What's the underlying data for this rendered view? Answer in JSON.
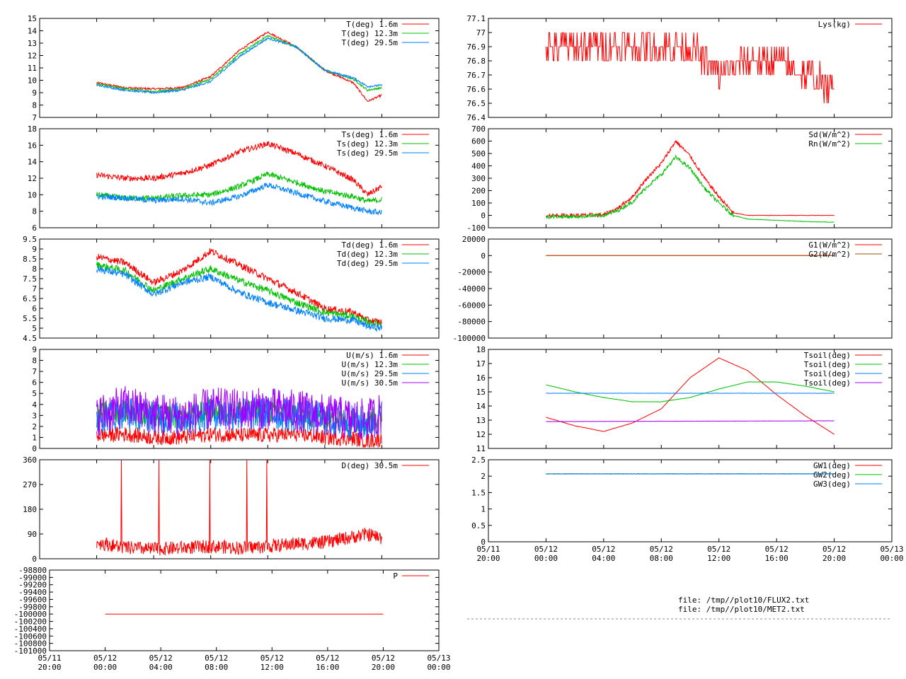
{
  "page": {
    "file_notes": [
      "file: /tmp//plot10/FLUX2.txt",
      "file: /tmp//plot10/MET2.txt"
    ]
  },
  "time_axis": {
    "start": "05/11 20:00",
    "end": "05/13 00:00",
    "tick_labels": [
      [
        "05/11",
        "20:00"
      ],
      [
        "05/12",
        "00:00"
      ],
      [
        "05/12",
        "04:00"
      ],
      [
        "05/12",
        "08:00"
      ],
      [
        "05/12",
        "12:00"
      ],
      [
        "05/12",
        "16:00"
      ],
      [
        "05/12",
        "20:00"
      ],
      [
        "05/13",
        "00:00"
      ]
    ]
  },
  "chart_data": [
    {
      "id": "T",
      "type": "line",
      "ylim": [
        7,
        15
      ],
      "yticks": [
        "7",
        "8",
        "9",
        "10",
        "11",
        "12",
        "13",
        "14",
        "15"
      ],
      "series": [
        {
          "name": "T(deg)  1.6m",
          "color": "#ff0000",
          "x": [
            4,
            6,
            8,
            10,
            12,
            14,
            16,
            18,
            20,
            22,
            23,
            24
          ],
          "y": [
            9.8,
            9.4,
            9.3,
            9.4,
            10.3,
            12.4,
            13.9,
            12.7,
            10.8,
            9.8,
            8.3,
            8.8
          ]
        },
        {
          "name": "T(deg) 12.3m",
          "color": "#00c000",
          "x": [
            4,
            6,
            8,
            10,
            12,
            14,
            16,
            18,
            20,
            22,
            23,
            24
          ],
          "y": [
            9.7,
            9.3,
            9.1,
            9.3,
            10.1,
            12.1,
            13.6,
            12.7,
            10.8,
            10.1,
            9.2,
            9.4
          ]
        },
        {
          "name": "T(deg) 29.5m",
          "color": "#0080ff",
          "x": [
            4,
            6,
            8,
            10,
            12,
            14,
            16,
            18,
            20,
            22,
            23,
            24
          ],
          "y": [
            9.6,
            9.2,
            9.0,
            9.2,
            9.9,
            11.9,
            13.4,
            12.7,
            10.8,
            10.2,
            9.5,
            9.6
          ]
        }
      ]
    },
    {
      "id": "Ts",
      "type": "line",
      "ylim": [
        6,
        18
      ],
      "yticks": [
        "6",
        "8",
        "10",
        "12",
        "14",
        "16",
        "18"
      ],
      "series": [
        {
          "name": "Ts(deg)  1.6m",
          "color": "#ff0000",
          "x": [
            4,
            6,
            8,
            10,
            12,
            14,
            16,
            18,
            20,
            22,
            23,
            24
          ],
          "y": [
            12.4,
            12.0,
            12.0,
            12.6,
            13.6,
            15.2,
            16.2,
            15.0,
            13.5,
            11.8,
            10.0,
            11.0
          ]
        },
        {
          "name": "Ts(deg) 12.3m",
          "color": "#00c000",
          "x": [
            4,
            6,
            8,
            10,
            12,
            14,
            16,
            18,
            20,
            22,
            23,
            24
          ],
          "y": [
            10.0,
            9.6,
            9.6,
            9.9,
            10.0,
            11.0,
            12.5,
            11.5,
            10.4,
            9.8,
            9.2,
            9.4
          ]
        },
        {
          "name": "Ts(deg) 29.5m",
          "color": "#0080ff",
          "x": [
            4,
            6,
            8,
            10,
            12,
            14,
            16,
            18,
            20,
            22,
            23,
            24
          ],
          "y": [
            9.8,
            9.6,
            9.3,
            9.5,
            9.0,
            9.8,
            11.2,
            10.2,
            9.2,
            8.4,
            8.0,
            7.8
          ]
        }
      ]
    },
    {
      "id": "Td",
      "type": "line",
      "ylim": [
        4.5,
        9.5
      ],
      "yticks": [
        "4.5",
        "5",
        "5.5",
        "6",
        "6.5",
        "7",
        "7.5",
        "8",
        "8.5",
        "9",
        "9.5"
      ],
      "series": [
        {
          "name": "Td(deg)  1.6m",
          "color": "#ff0000",
          "x": [
            4,
            6,
            8,
            10,
            12,
            14,
            16,
            18,
            20,
            22,
            23,
            24
          ],
          "y": [
            8.6,
            8.3,
            7.3,
            7.9,
            8.9,
            8.2,
            7.5,
            6.8,
            6.0,
            5.8,
            5.4,
            5.3
          ]
        },
        {
          "name": "Td(deg) 12.3m",
          "color": "#00c000",
          "x": [
            4,
            6,
            8,
            10,
            12,
            14,
            16,
            18,
            20,
            22,
            23,
            24
          ],
          "y": [
            8.2,
            7.9,
            6.9,
            7.5,
            8.0,
            7.4,
            6.9,
            6.3,
            5.8,
            5.6,
            5.3,
            5.2
          ]
        },
        {
          "name": "Td(deg) 29.5m",
          "color": "#0080ff",
          "x": [
            4,
            6,
            8,
            10,
            12,
            14,
            16,
            18,
            20,
            22,
            23,
            24
          ],
          "y": [
            8.0,
            7.7,
            6.7,
            7.3,
            7.6,
            6.8,
            6.3,
            5.9,
            5.5,
            5.4,
            5.1,
            5.0
          ]
        }
      ]
    },
    {
      "id": "U",
      "type": "line",
      "ylim": [
        0,
        9
      ],
      "yticks": [
        "0",
        "1",
        "2",
        "3",
        "4",
        "5",
        "6",
        "7",
        "8",
        "9"
      ],
      "series": [
        {
          "name": "U(m/s)  1.6m",
          "color": "#ff0000",
          "x": [
            4,
            6,
            8,
            10,
            12,
            14,
            16,
            18,
            20,
            22,
            23,
            24
          ],
          "y": [
            1.2,
            1.3,
            1.0,
            1.0,
            1.3,
            1.2,
            1.2,
            1.3,
            1.0,
            0.9,
            0.7,
            0.8
          ]
        },
        {
          "name": "U(m/s) 12.3m",
          "color": "#00c000",
          "x": [
            4,
            6,
            8,
            10,
            12,
            14,
            16,
            18,
            20,
            22,
            23,
            24
          ],
          "y": [
            3.0,
            3.5,
            3.0,
            2.8,
            3.4,
            3.3,
            3.4,
            3.2,
            2.8,
            2.5,
            2.4,
            3.0
          ]
        },
        {
          "name": "U(m/s) 29.5m",
          "color": "#0080ff",
          "x": [
            4,
            6,
            8,
            10,
            12,
            14,
            16,
            18,
            20,
            22,
            23,
            24
          ],
          "y": [
            2.8,
            3.3,
            2.9,
            2.7,
            3.2,
            3.1,
            3.2,
            3.0,
            2.7,
            2.4,
            2.3,
            2.9
          ]
        },
        {
          "name": "U(m/s) 30.5m",
          "color": "#a000ff",
          "x": [
            4,
            6,
            8,
            10,
            12,
            14,
            16,
            18,
            20,
            22,
            23,
            24
          ],
          "y": [
            3.0,
            3.8,
            3.2,
            2.9,
            3.6,
            3.5,
            3.6,
            3.4,
            3.0,
            2.6,
            2.6,
            3.2
          ]
        }
      ]
    },
    {
      "id": "D",
      "type": "line",
      "ylim": [
        0,
        360
      ],
      "yticks": [
        "0",
        "90",
        "180",
        "270",
        "360"
      ],
      "series": [
        {
          "name": "D(deg)  30.5m",
          "color": "#ff0000",
          "x": [
            4,
            6,
            8,
            10,
            12,
            14,
            16,
            18,
            20,
            22,
            23,
            24
          ],
          "y": [
            60,
            40,
            35,
            40,
            45,
            40,
            45,
            55,
            60,
            80,
            90,
            75
          ]
        }
      ]
    },
    {
      "id": "P",
      "type": "line",
      "ylim": [
        -101000,
        -98800
      ],
      "yticks": [
        "-98800",
        "-99000",
        "-99200",
        "-99400",
        "-99600",
        "-99800",
        "-100000",
        "-100200",
        "-100400",
        "-100600",
        "-100800",
        "-101000"
      ],
      "series": [
        {
          "name": "P",
          "color": "#ff0000",
          "x": [
            4,
            24
          ],
          "y": [
            -100000,
            -100000
          ]
        }
      ]
    },
    {
      "id": "Lys",
      "type": "line",
      "ylim": [
        76.4,
        77.1
      ],
      "yticks": [
        "76.4",
        "76.5",
        "76.6",
        "76.7",
        "76.8",
        "76.9",
        "77",
        "77.1"
      ],
      "series": [
        {
          "name": "Lys(kg)",
          "color": "#ff0000",
          "x": [
            4,
            6,
            8,
            10,
            12,
            14,
            16,
            18,
            20,
            22,
            24
          ],
          "y": [
            76.9,
            76.9,
            76.9,
            76.9,
            76.9,
            76.9,
            76.7,
            76.8,
            76.8,
            76.7,
            76.6
          ]
        }
      ]
    },
    {
      "id": "Rad",
      "type": "line",
      "ylim": [
        -100,
        700
      ],
      "yticks": [
        "-100",
        "0",
        "100",
        "200",
        "300",
        "400",
        "500",
        "600",
        "700"
      ],
      "series": [
        {
          "name": "Sd(W/m^2)",
          "color": "#ff0000",
          "x": [
            4,
            6,
            8,
            9,
            10,
            11,
            12,
            13,
            14,
            15,
            16,
            17,
            18,
            20,
            22,
            24
          ],
          "y": [
            0,
            0,
            5,
            60,
            150,
            300,
            420,
            600,
            480,
            300,
            150,
            20,
            0,
            0,
            0,
            0
          ]
        },
        {
          "name": "Rn(W/m^2)",
          "color": "#00c000",
          "x": [
            4,
            6,
            8,
            9,
            10,
            11,
            12,
            13,
            14,
            15,
            16,
            17,
            18,
            20,
            22,
            24
          ],
          "y": [
            -10,
            -10,
            0,
            40,
            110,
            230,
            330,
            470,
            380,
            220,
            100,
            0,
            -30,
            -40,
            -50,
            -55
          ]
        }
      ]
    },
    {
      "id": "G",
      "type": "line",
      "ylim": [
        -100000,
        20000
      ],
      "yticks": [
        "-100000",
        "-80000",
        "-60000",
        "-40000",
        "-20000",
        "0",
        "20000"
      ],
      "series": [
        {
          "name": "G1(W/m^2)",
          "color": "#ff0000",
          "x": [
            4,
            24
          ],
          "y": [
            0,
            0
          ]
        },
        {
          "name": "G2(W/m^2)",
          "color": "#a05000",
          "x": [
            4,
            24
          ],
          "y": [
            0,
            0
          ]
        }
      ]
    },
    {
      "id": "Tsoil",
      "type": "line",
      "ylim": [
        11,
        18
      ],
      "yticks": [
        "11",
        "12",
        "13",
        "14",
        "15",
        "16",
        "17",
        "18"
      ],
      "series": [
        {
          "name": "Tsoil(deg)",
          "color": "#ff0000",
          "x": [
            4,
            6,
            8,
            10,
            12,
            14,
            16,
            18,
            20,
            22,
            24
          ],
          "y": [
            13.2,
            12.6,
            12.2,
            12.8,
            13.8,
            16.0,
            17.4,
            16.5,
            14.8,
            13.3,
            12.0
          ]
        },
        {
          "name": "Tsoil(deg)",
          "color": "#00c000",
          "x": [
            4,
            6,
            8,
            10,
            12,
            14,
            16,
            18,
            20,
            22,
            24
          ],
          "y": [
            15.5,
            15.0,
            14.6,
            14.3,
            14.3,
            14.6,
            15.2,
            15.7,
            15.7,
            15.4,
            15.0
          ]
        },
        {
          "name": "Tsoil(deg)",
          "color": "#0080ff",
          "x": [
            4,
            24
          ],
          "y": [
            14.9,
            14.9
          ]
        },
        {
          "name": "Tsoil(deg)",
          "color": "#a000ff",
          "x": [
            4,
            24
          ],
          "y": [
            12.9,
            12.95
          ]
        }
      ]
    },
    {
      "id": "GW",
      "type": "line",
      "ylim": [
        0,
        2.5
      ],
      "yticks": [
        "0",
        "0.5",
        "1",
        "1.5",
        "2",
        "2.5"
      ],
      "series": [
        {
          "name": "GW1(deg)",
          "color": "#ff0000",
          "x": [
            4,
            24
          ],
          "y": [
            2.07,
            2.07
          ]
        },
        {
          "name": "GW2(deg)",
          "color": "#00c000",
          "x": [
            4,
            24
          ],
          "y": [
            2.07,
            2.07
          ]
        },
        {
          "name": "GW3(deg)",
          "color": "#0080ff",
          "x": [
            4,
            24
          ],
          "y": [
            2.07,
            2.07
          ]
        }
      ]
    }
  ]
}
